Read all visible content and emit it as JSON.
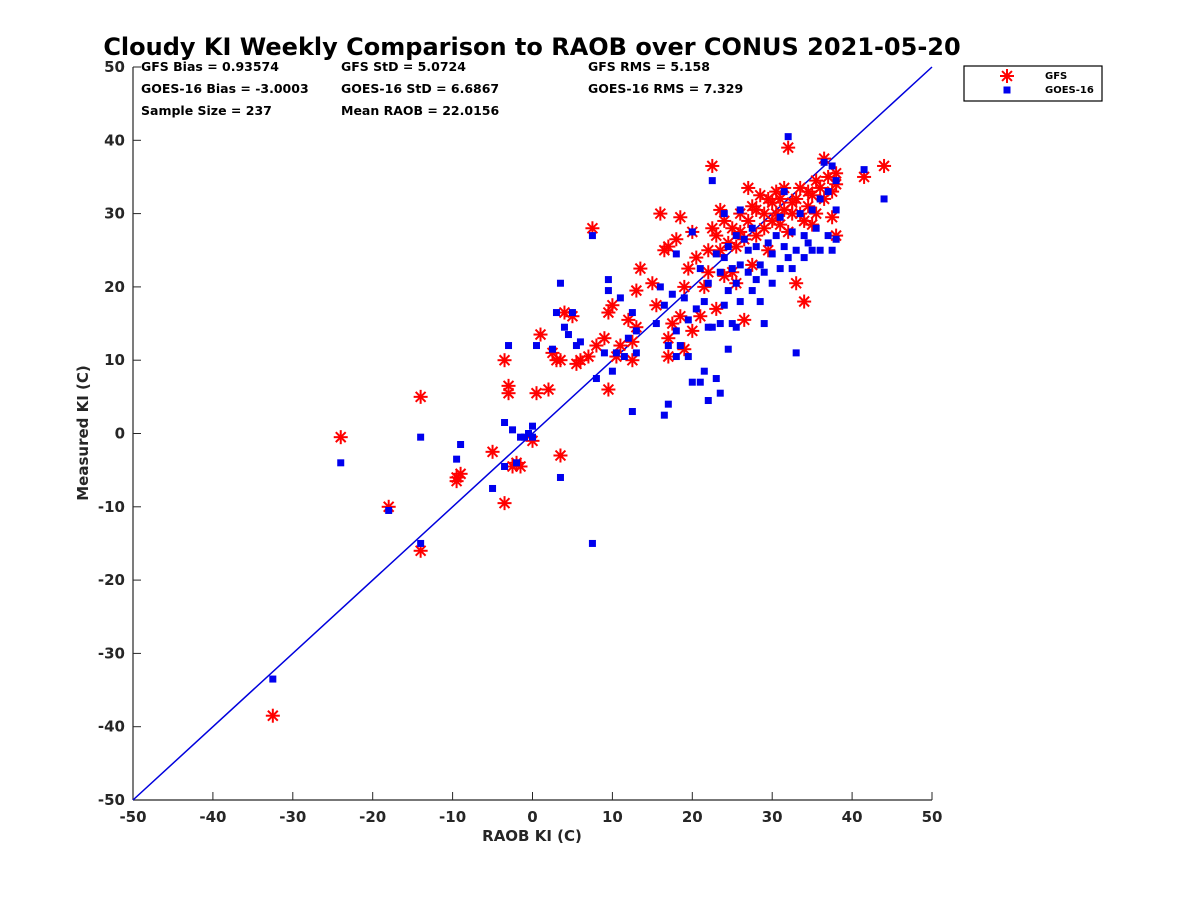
{
  "chart_data": {
    "type": "scatter",
    "title": "Cloudy KI Weekly Comparison to RAOB over CONUS 2021-05-20",
    "xlabel": "RAOB KI (C)",
    "ylabel": "Measured KI (C)",
    "xlim": [
      -50,
      50
    ],
    "ylim": [
      -50,
      50
    ],
    "xticks": [
      "-50",
      "-40",
      "-30",
      "-20",
      "-10",
      "0",
      "10",
      "20",
      "30",
      "40",
      "50"
    ],
    "yticks": [
      "50",
      "40",
      "30",
      "20",
      "10",
      "0",
      "-10",
      "-20",
      "-30",
      "-40",
      "-50"
    ],
    "grid": false,
    "legend_position": "outside top-right",
    "reference_line": {
      "x": [
        -50,
        50
      ],
      "y": [
        -50,
        50
      ],
      "color": "#0000dd"
    },
    "stats": [
      [
        "GFS Bias = 0.93574",
        "GFS StD = 5.0724",
        "GFS RMS = 5.158"
      ],
      [
        "GOES-16 Bias = -3.0003",
        "GOES-16 StD = 6.6867",
        "GOES-16 RMS = 7.329"
      ],
      [
        "Sample Size = 237",
        "Mean RAOB = 22.0156",
        ""
      ]
    ],
    "series": [
      {
        "name": "GFS",
        "marker": "asterisk",
        "color": "#ff0000",
        "points": [
          [
            -32.5,
            -38.5
          ],
          [
            -24,
            -0.5
          ],
          [
            -18,
            -10
          ],
          [
            -14,
            5
          ],
          [
            -14,
            -16
          ],
          [
            -9.5,
            -6.5
          ],
          [
            -9.5,
            -6
          ],
          [
            -9,
            -5.5
          ],
          [
            -5,
            -2.5
          ],
          [
            -3.5,
            -9.5
          ],
          [
            -3.5,
            10
          ],
          [
            -3,
            6.5
          ],
          [
            -3,
            5.5
          ],
          [
            -2.5,
            -4.5
          ],
          [
            -2,
            -4
          ],
          [
            -1.5,
            -4.5
          ],
          [
            0,
            -1
          ],
          [
            0.5,
            5.5
          ],
          [
            1,
            13.5
          ],
          [
            2,
            6
          ],
          [
            2.5,
            11
          ],
          [
            3,
            10
          ],
          [
            3.5,
            10
          ],
          [
            3.5,
            -3
          ],
          [
            4,
            16.5
          ],
          [
            5,
            16
          ],
          [
            5.5,
            9.5
          ],
          [
            6,
            10
          ],
          [
            7,
            10.5
          ],
          [
            7.5,
            28
          ],
          [
            8,
            12
          ],
          [
            9,
            13
          ],
          [
            9.5,
            6
          ],
          [
            9.5,
            16.5
          ],
          [
            10,
            17.5
          ],
          [
            10.5,
            10.5
          ],
          [
            11,
            12
          ],
          [
            12,
            15.5
          ],
          [
            12.5,
            10
          ],
          [
            12.5,
            12.5
          ],
          [
            13,
            14.5
          ],
          [
            13,
            19.5
          ],
          [
            13.5,
            22.5
          ],
          [
            15,
            20.5
          ],
          [
            15.5,
            17.5
          ],
          [
            16,
            30
          ],
          [
            16.5,
            25
          ],
          [
            17,
            10.5
          ],
          [
            17,
            13
          ],
          [
            17,
            25.5
          ],
          [
            17.5,
            15
          ],
          [
            18,
            26.5
          ],
          [
            18.5,
            16
          ],
          [
            18.5,
            29.5
          ],
          [
            19,
            11.5
          ],
          [
            19,
            20
          ],
          [
            19.5,
            22.5
          ],
          [
            20,
            14
          ],
          [
            20,
            27.5
          ],
          [
            20.5,
            24
          ],
          [
            21,
            16
          ],
          [
            21.5,
            20
          ],
          [
            22,
            22
          ],
          [
            22,
            25
          ],
          [
            22.5,
            28
          ],
          [
            22.5,
            36.5
          ],
          [
            23,
            17
          ],
          [
            23,
            27
          ],
          [
            23.5,
            25
          ],
          [
            23.5,
            30.5
          ],
          [
            24,
            21.5
          ],
          [
            24,
            29
          ],
          [
            24.5,
            26
          ],
          [
            25,
            22
          ],
          [
            25,
            28
          ],
          [
            25.5,
            20.5
          ],
          [
            25.5,
            25.5
          ],
          [
            26,
            27.5
          ],
          [
            26,
            30
          ],
          [
            26.5,
            15.5
          ],
          [
            26.5,
            26.5
          ],
          [
            27,
            29
          ],
          [
            27,
            33.5
          ],
          [
            27.5,
            23
          ],
          [
            27.5,
            31
          ],
          [
            28,
            27
          ],
          [
            28,
            30.5
          ],
          [
            28.5,
            32.5
          ],
          [
            29,
            28
          ],
          [
            29,
            30
          ],
          [
            29.5,
            25
          ],
          [
            29.5,
            32
          ],
          [
            30,
            29
          ],
          [
            30,
            31.5
          ],
          [
            30.5,
            30
          ],
          [
            30.5,
            33
          ],
          [
            31,
            28.5
          ],
          [
            31,
            32
          ],
          [
            31.5,
            30.5
          ],
          [
            31.5,
            33.5
          ],
          [
            32,
            27.5
          ],
          [
            32,
            39
          ],
          [
            32.5,
            30
          ],
          [
            32.5,
            31.5
          ],
          [
            33,
            20.5
          ],
          [
            33,
            32
          ],
          [
            33.5,
            30
          ],
          [
            33.5,
            33.5
          ],
          [
            34,
            18
          ],
          [
            34,
            29
          ],
          [
            34.5,
            31
          ],
          [
            34.5,
            33
          ],
          [
            35,
            28.5
          ],
          [
            35,
            32.5
          ],
          [
            35.5,
            30
          ],
          [
            35.5,
            34.5
          ],
          [
            36,
            33.5
          ],
          [
            36.5,
            32
          ],
          [
            36.5,
            37.5
          ],
          [
            37,
            35
          ],
          [
            37.5,
            29.5
          ],
          [
            37.5,
            33
          ],
          [
            38,
            27
          ],
          [
            38,
            34
          ],
          [
            38,
            35.5
          ],
          [
            41.5,
            35
          ],
          [
            44,
            36.5
          ]
        ]
      },
      {
        "name": "GOES-16",
        "marker": "square",
        "color": "#0000ee",
        "points": [
          [
            -32.5,
            -33.5
          ],
          [
            -24,
            -4
          ],
          [
            -18,
            -10.5
          ],
          [
            -14,
            -15
          ],
          [
            -14,
            -0.5
          ],
          [
            -9.5,
            -3.5
          ],
          [
            -9,
            -1.5
          ],
          [
            -5,
            -7.5
          ],
          [
            -3.5,
            -4.5
          ],
          [
            -3.5,
            1.5
          ],
          [
            -3,
            12
          ],
          [
            -2.5,
            0.5
          ],
          [
            -2,
            -4
          ],
          [
            -1.5,
            -0.5
          ],
          [
            -1,
            -0.5
          ],
          [
            -0.5,
            0
          ],
          [
            0,
            1
          ],
          [
            0,
            -0.5
          ],
          [
            0.5,
            12
          ],
          [
            2.5,
            11.5
          ],
          [
            3,
            16.5
          ],
          [
            3.5,
            20.5
          ],
          [
            3.5,
            -6
          ],
          [
            4,
            14.5
          ],
          [
            4.5,
            13.5
          ],
          [
            5,
            16.5
          ],
          [
            5.5,
            12
          ],
          [
            6,
            12.5
          ],
          [
            7.5,
            27
          ],
          [
            7.5,
            -15
          ],
          [
            8,
            7.5
          ],
          [
            9,
            11
          ],
          [
            9.5,
            19.5
          ],
          [
            9.5,
            21
          ],
          [
            10,
            8.5
          ],
          [
            10.5,
            11
          ],
          [
            11,
            18.5
          ],
          [
            11.5,
            10.5
          ],
          [
            12,
            13
          ],
          [
            12.5,
            3
          ],
          [
            12.5,
            16.5
          ],
          [
            13,
            11
          ],
          [
            13,
            14
          ],
          [
            15.5,
            15
          ],
          [
            16,
            20
          ],
          [
            16.5,
            2.5
          ],
          [
            16.5,
            17.5
          ],
          [
            17,
            4
          ],
          [
            17,
            12
          ],
          [
            17.5,
            19
          ],
          [
            18,
            10.5
          ],
          [
            18,
            14
          ],
          [
            18,
            24.5
          ],
          [
            18.5,
            12
          ],
          [
            19,
            18.5
          ],
          [
            19.5,
            10.5
          ],
          [
            19.5,
            15.5
          ],
          [
            20,
            7
          ],
          [
            20,
            27.5
          ],
          [
            20.5,
            17
          ],
          [
            21,
            7
          ],
          [
            21,
            22.5
          ],
          [
            21.5,
            8.5
          ],
          [
            21.5,
            18
          ],
          [
            22,
            4.5
          ],
          [
            22,
            14.5
          ],
          [
            22,
            20.5
          ],
          [
            22.5,
            34.5
          ],
          [
            22.5,
            14.5
          ],
          [
            23,
            7.5
          ],
          [
            23,
            24.5
          ],
          [
            23.5,
            5.5
          ],
          [
            23.5,
            15
          ],
          [
            23.5,
            22
          ],
          [
            24,
            17.5
          ],
          [
            24,
            24
          ],
          [
            24,
            30
          ],
          [
            24.5,
            11.5
          ],
          [
            24.5,
            19.5
          ],
          [
            24.5,
            25.5
          ],
          [
            25,
            15
          ],
          [
            25,
            22.5
          ],
          [
            25.5,
            14.5
          ],
          [
            25.5,
            20.5
          ],
          [
            25.5,
            27
          ],
          [
            26,
            18
          ],
          [
            26,
            23
          ],
          [
            26,
            30.5
          ],
          [
            26.5,
            26.5
          ],
          [
            27,
            22
          ],
          [
            27,
            25
          ],
          [
            27.5,
            19.5
          ],
          [
            27.5,
            28
          ],
          [
            28,
            21
          ],
          [
            28,
            25.5
          ],
          [
            28.5,
            18
          ],
          [
            28.5,
            23
          ],
          [
            29,
            15
          ],
          [
            29,
            22
          ],
          [
            29.5,
            26
          ],
          [
            30,
            20.5
          ],
          [
            30,
            24.5
          ],
          [
            30.5,
            27
          ],
          [
            31,
            22.5
          ],
          [
            31,
            29.5
          ],
          [
            31.5,
            25.5
          ],
          [
            31.5,
            33
          ],
          [
            32,
            40.5
          ],
          [
            32,
            24
          ],
          [
            32.5,
            22.5
          ],
          [
            32.5,
            27.5
          ],
          [
            33,
            11
          ],
          [
            33,
            25
          ],
          [
            33.5,
            30
          ],
          [
            34,
            24
          ],
          [
            34,
            27
          ],
          [
            34.5,
            26
          ],
          [
            35,
            25
          ],
          [
            35,
            30.5
          ],
          [
            35.5,
            28
          ],
          [
            36,
            25
          ],
          [
            36,
            32
          ],
          [
            36.5,
            37
          ],
          [
            37,
            27
          ],
          [
            37,
            33
          ],
          [
            37.5,
            25
          ],
          [
            37.5,
            36.5
          ],
          [
            38,
            26.5
          ],
          [
            38,
            30.5
          ],
          [
            38,
            34.5
          ],
          [
            41.5,
            36
          ],
          [
            44,
            32
          ]
        ]
      }
    ]
  }
}
